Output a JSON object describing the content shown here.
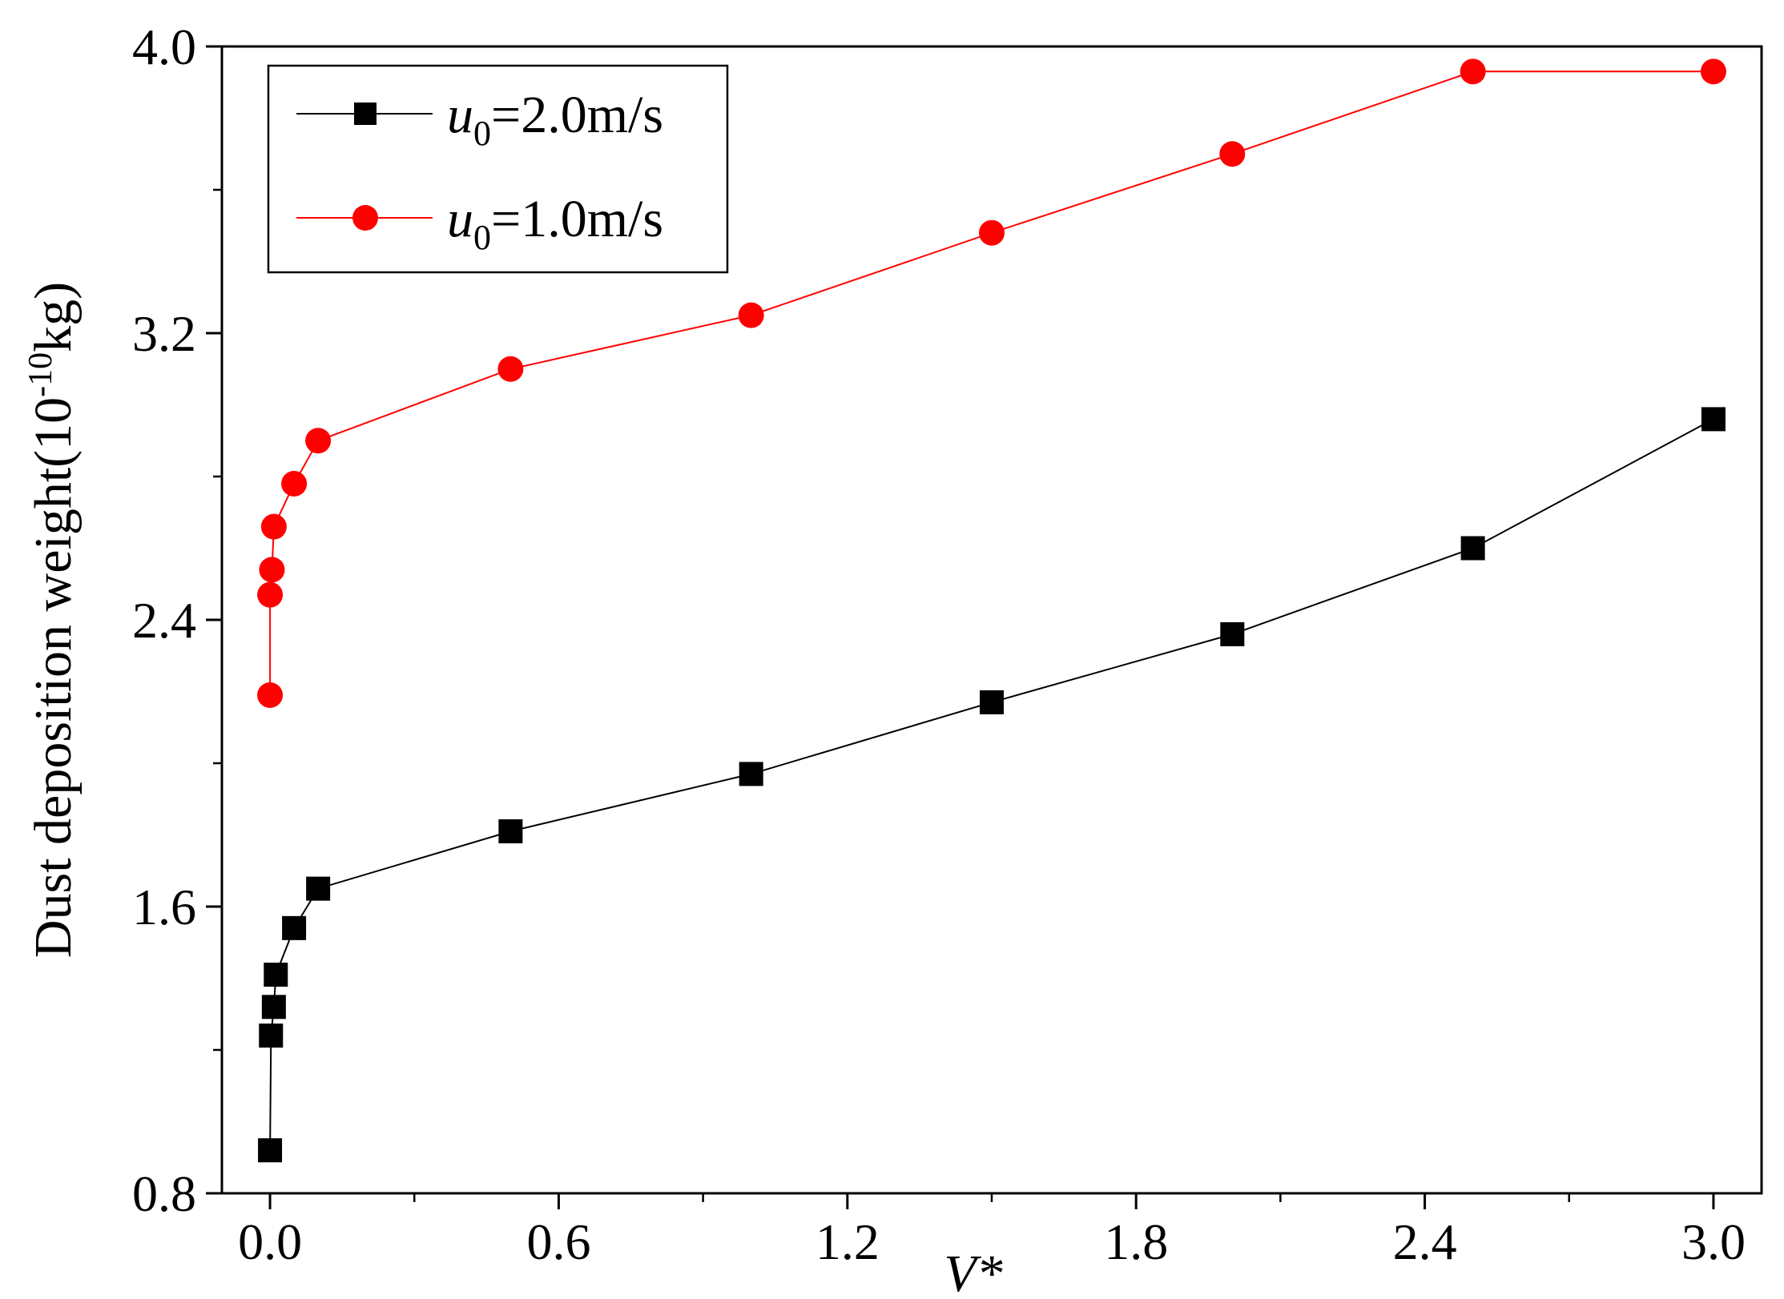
{
  "chart_data": {
    "type": "line",
    "title": "",
    "xlabel": "V*",
    "ylabel_text": "Dust deposition weight(10",
    "ylabel_sup": "-10",
    "ylabel_unit": "kg)",
    "xlim": [
      -0.1,
      3.1
    ],
    "ylim": [
      0.8,
      4.0
    ],
    "xticks": [
      "0.0",
      "0.6",
      "1.2",
      "1.8",
      "2.4",
      "3.0"
    ],
    "yticks": [
      "0.8",
      "1.6",
      "2.4",
      "3.2",
      "4.0"
    ],
    "legend_position": "top-left",
    "series": [
      {
        "name_var": "u",
        "name_sub": "0",
        "name_rest": "=2.0m/s",
        "marker": "square",
        "color": "#000000",
        "x": [
          0,
          0.002,
          0.008,
          0.012,
          0.05,
          0.1,
          0.5,
          1.0,
          1.5,
          2.0,
          2.5,
          3.0
        ],
        "y": [
          0.92,
          1.24,
          1.32,
          1.41,
          1.54,
          1.65,
          1.81,
          1.97,
          2.17,
          2.36,
          2.6,
          2.96
        ]
      },
      {
        "name_var": "u",
        "name_sub": "0",
        "name_rest": "=1.0m/s",
        "marker": "circle",
        "color": "#ff0000",
        "x": [
          0,
          0.0,
          0.004,
          0.008,
          0.05,
          0.1,
          0.5,
          1.0,
          1.5,
          2.0,
          2.5,
          3.0
        ],
        "y": [
          2.19,
          2.47,
          2.54,
          2.66,
          2.78,
          2.9,
          3.1,
          3.25,
          3.48,
          3.7,
          3.93,
          3.93
        ]
      }
    ]
  }
}
